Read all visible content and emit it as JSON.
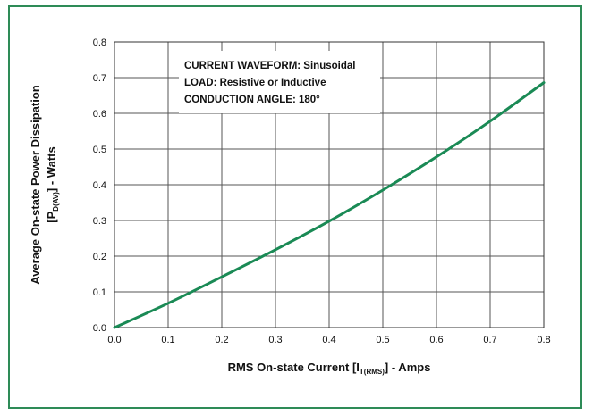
{
  "chart_data": {
    "type": "line",
    "xlabel": {
      "prefix": "RMS On-state Current [I",
      "subscript": "T(RMS)",
      "suffix": "] - Amps"
    },
    "ylabel": {
      "line1": "Average On-state Power Dissipation",
      "prefix": "[P",
      "subscript": "D(AV)",
      "suffix": "] - Watts"
    },
    "xlim": [
      0,
      0.8
    ],
    "ylim": [
      0,
      0.8
    ],
    "xticks": [
      "0.0",
      "0.1",
      "0.2",
      "0.3",
      "0.4",
      "0.5",
      "0.6",
      "0.7",
      "0.8"
    ],
    "yticks": [
      "0.0",
      "0.1",
      "0.2",
      "0.3",
      "0.4",
      "0.5",
      "0.6",
      "0.7",
      "0.8"
    ],
    "grid": true,
    "annotations": [
      "CURRENT WAVEFORM: Sinusoidal",
      "LOAD: Resistive or Inductive",
      "CONDUCTION ANGLE: 180°"
    ],
    "series": [
      {
        "color": "#1a8a55",
        "x": [
          0.0,
          0.1,
          0.2,
          0.3,
          0.4,
          0.5,
          0.6,
          0.7,
          0.8
        ],
        "y": [
          0.0,
          0.068,
          0.142,
          0.218,
          0.298,
          0.385,
          0.478,
          0.578,
          0.686
        ]
      }
    ]
  }
}
